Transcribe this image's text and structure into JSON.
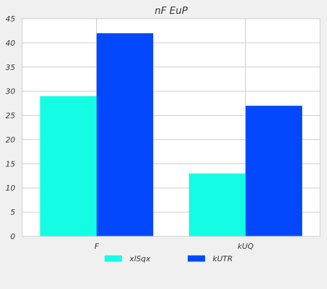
{
  "chart_data": {
    "type": "bar",
    "title": "nF EuP",
    "xlabel": "",
    "ylabel": "",
    "categories": [
      "F",
      "kUQ"
    ],
    "series": [
      {
        "name": "xlSqx",
        "values": [
          29,
          13
        ],
        "color": "#14fde4"
      },
      {
        "name": "kUTR",
        "values": [
          42,
          27
        ],
        "color": "#0348fd"
      }
    ],
    "ylim": [
      0,
      45
    ],
    "yticks": [
      0,
      5,
      10,
      15,
      20,
      25,
      30,
      35,
      40,
      45
    ],
    "grid": true,
    "legend_position": "bottom-center",
    "plot_background": "#ffffff",
    "page_background": "#f0f0f0",
    "grid_color": "#cccccc"
  }
}
